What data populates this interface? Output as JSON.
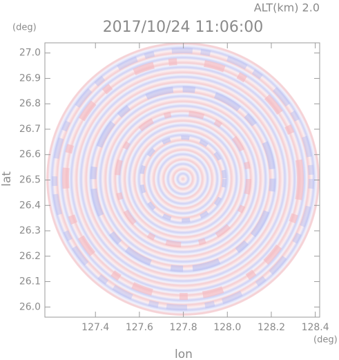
{
  "chart_data": {
    "type": "radar-ppi",
    "title": "2017/10/24 11:06:00",
    "subtitle": "ALT(km) 2.0",
    "x_label": "lon",
    "y_label": "lat",
    "x_unit": "(deg)",
    "y_unit": "(deg)",
    "xlim": [
      127.17,
      128.42
    ],
    "ylim": [
      25.96,
      27.04
    ],
    "xticks": [
      127.4,
      127.6,
      127.8,
      {
        "value": 128,
        "label": "128.0"
      },
      128.2,
      128.4
    ],
    "yticks": [
      {
        "value": 26,
        "label": "26.0"
      },
      26.1,
      26.2,
      26.3,
      26.4,
      26.5,
      26.6,
      26.7,
      26.8,
      26.9,
      {
        "value": 27,
        "label": "27.0"
      }
    ]
  }
}
